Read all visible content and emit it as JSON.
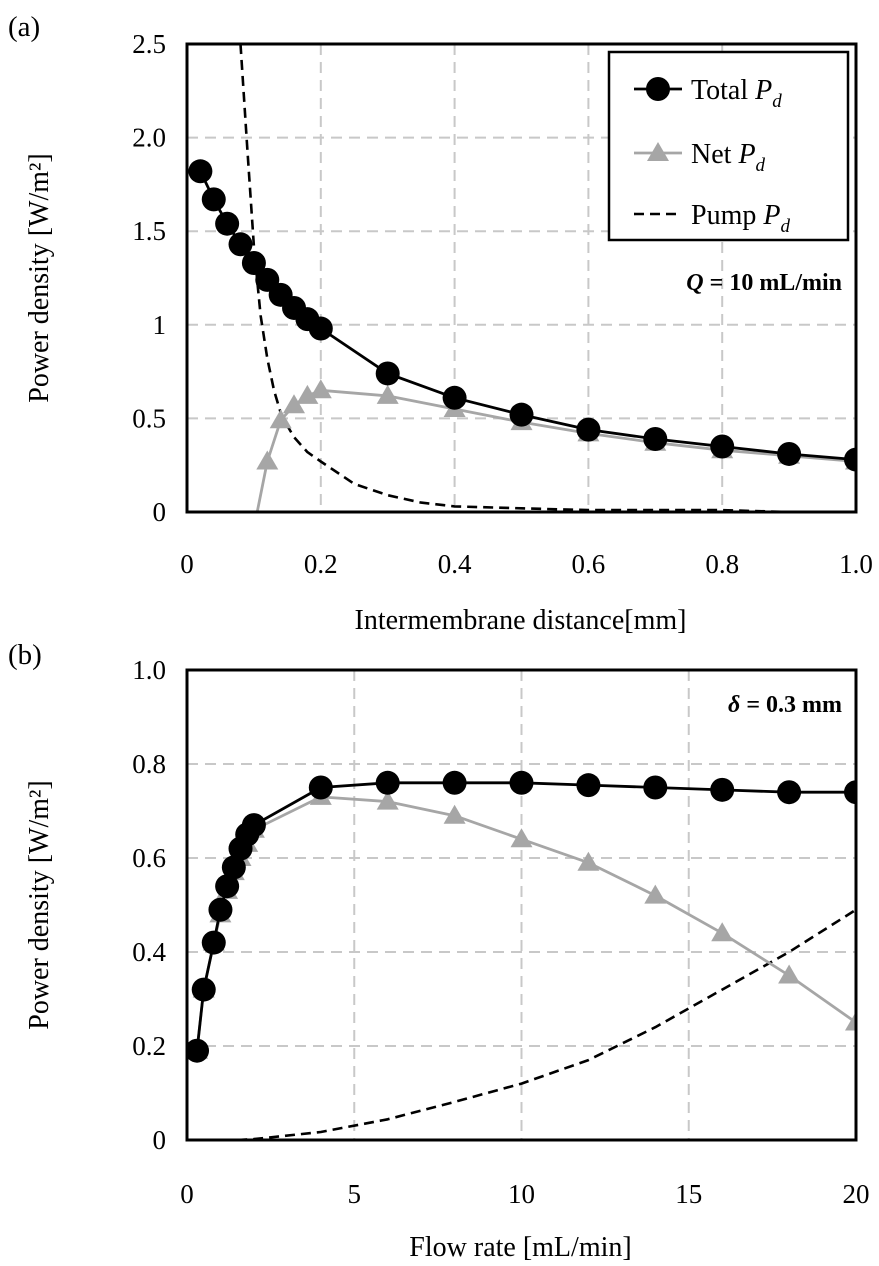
{
  "chart_data": [
    {
      "type": "line",
      "panel_label": "(a)",
      "xlabel": "Intermembrane distance[mm]",
      "ylabel": "Power density [W/m²]",
      "xlim": [
        0,
        1.0
      ],
      "ylim": [
        0,
        2.5
      ],
      "x_ticks": [
        "0",
        "0.2",
        "0.4",
        "0.6",
        "0.8",
        "1.0"
      ],
      "y_ticks": [
        "0",
        "0.5",
        "1",
        "1.5",
        "2.0",
        "2.5"
      ],
      "grid": true,
      "annotation": {
        "symbol": "Q",
        "text": " = 10 mL/min"
      },
      "legend": {
        "placement": "top-right",
        "entries": [
          {
            "symbol_text": "Total ",
            "subscript": "d",
            "var": "P"
          },
          {
            "symbol_text": "Net ",
            "subscript": "d",
            "var": "P"
          },
          {
            "symbol_text": "Pump ",
            "subscript": "d",
            "var": "P"
          }
        ]
      },
      "series": [
        {
          "name": "Total Pd",
          "style": "circle",
          "color": "#000000",
          "x": [
            0.02,
            0.04,
            0.06,
            0.08,
            0.1,
            0.12,
            0.14,
            0.16,
            0.18,
            0.2,
            0.3,
            0.4,
            0.5,
            0.6,
            0.7,
            0.8,
            0.9,
            1.0
          ],
          "y": [
            1.82,
            1.67,
            1.54,
            1.43,
            1.33,
            1.24,
            1.16,
            1.09,
            1.03,
            0.98,
            0.74,
            0.61,
            0.52,
            0.44,
            0.39,
            0.35,
            0.31,
            0.28
          ]
        },
        {
          "name": "Net Pd",
          "style": "triangle",
          "color": "#a6a6a6",
          "x": [
            0.12,
            0.14,
            0.16,
            0.18,
            0.2,
            0.3,
            0.4,
            0.5,
            0.6,
            0.7,
            0.8,
            0.9,
            1.0
          ],
          "y": [
            0.27,
            0.49,
            0.57,
            0.62,
            0.65,
            0.62,
            0.55,
            0.48,
            0.42,
            0.37,
            0.33,
            0.3,
            0.27
          ],
          "curve_x": [
            0.105,
            0.12,
            0.14,
            0.16,
            0.18,
            0.2,
            0.3,
            0.4,
            0.5,
            0.6,
            0.7,
            0.8,
            0.9,
            1.0
          ],
          "curve_y": [
            0.0,
            0.27,
            0.49,
            0.57,
            0.62,
            0.65,
            0.62,
            0.55,
            0.48,
            0.42,
            0.37,
            0.33,
            0.3,
            0.27
          ]
        },
        {
          "name": "Pump Pd",
          "style": "dashed",
          "color": "#000000",
          "x": [
            0.08,
            0.09,
            0.1,
            0.11,
            0.12,
            0.13,
            0.14,
            0.15,
            0.16,
            0.18,
            0.2,
            0.25,
            0.3,
            0.35,
            0.4,
            0.5,
            0.6,
            0.7,
            0.8,
            0.9,
            1.0
          ],
          "y": [
            2.5,
            1.95,
            1.42,
            1.05,
            0.82,
            0.65,
            0.53,
            0.46,
            0.4,
            0.32,
            0.27,
            0.15,
            0.09,
            0.05,
            0.03,
            0.02,
            0.01,
            0.01,
            0.01,
            0.0,
            0.0
          ]
        }
      ]
    },
    {
      "type": "line",
      "panel_label": "(b)",
      "xlabel": "Flow rate [mL/min]",
      "ylabel": "Power density [W/m²]",
      "xlim": [
        0,
        20
      ],
      "ylim": [
        0,
        1.0
      ],
      "x_ticks": [
        "0",
        "5",
        "10",
        "15",
        "20"
      ],
      "y_ticks": [
        "0",
        "0.2",
        "0.4",
        "0.6",
        "0.8",
        "1.0"
      ],
      "grid": true,
      "annotation": {
        "symbol": "δ",
        "text": " = 0.3 mm"
      },
      "series": [
        {
          "name": "Total Pd",
          "style": "circle",
          "color": "#000000",
          "x": [
            0.3,
            0.5,
            0.8,
            1.0,
            1.2,
            1.4,
            1.6,
            1.8,
            2.0,
            4,
            6,
            8,
            10,
            12,
            14,
            16,
            18,
            20
          ],
          "y": [
            0.19,
            0.32,
            0.42,
            0.49,
            0.54,
            0.58,
            0.62,
            0.65,
            0.67,
            0.75,
            0.76,
            0.76,
            0.76,
            0.755,
            0.75,
            0.745,
            0.74,
            0.74
          ]
        },
        {
          "name": "Net Pd",
          "style": "triangle",
          "color": "#a6a6a6",
          "x": [
            0.3,
            0.5,
            0.8,
            1.0,
            1.2,
            1.4,
            1.6,
            1.8,
            2.0,
            4,
            6,
            8,
            10,
            12,
            14,
            16,
            18,
            20
          ],
          "y": [
            0.19,
            0.32,
            0.42,
            0.48,
            0.53,
            0.57,
            0.6,
            0.63,
            0.66,
            0.73,
            0.72,
            0.69,
            0.64,
            0.59,
            0.52,
            0.44,
            0.35,
            0.25
          ]
        },
        {
          "name": "Pump Pd",
          "style": "dashed",
          "color": "#000000",
          "x": [
            1.5,
            2,
            4,
            6,
            8,
            10,
            12,
            14,
            16,
            18,
            20
          ],
          "y": [
            0.0,
            0.002,
            0.017,
            0.044,
            0.081,
            0.12,
            0.17,
            0.24,
            0.32,
            0.4,
            0.49
          ]
        }
      ]
    }
  ]
}
